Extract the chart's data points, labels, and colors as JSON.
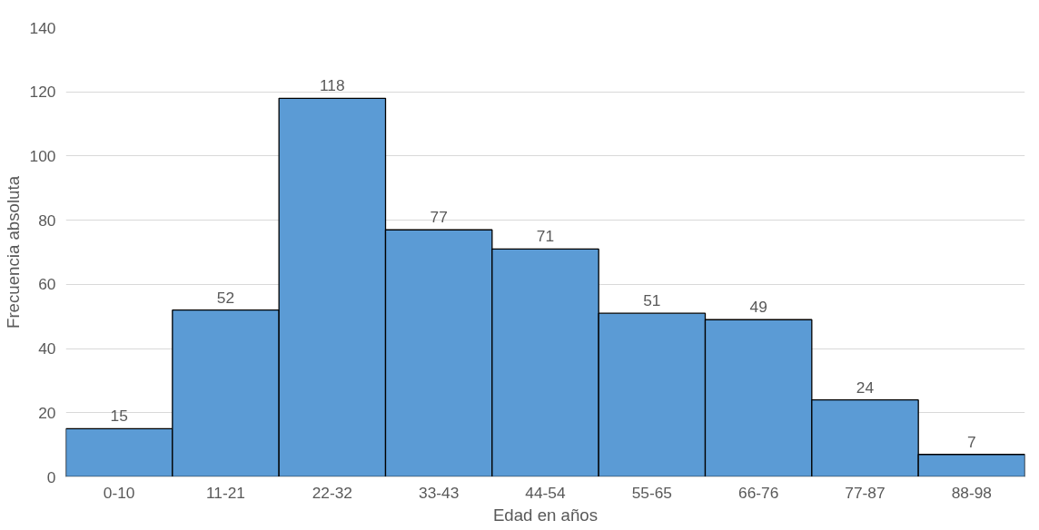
{
  "chart_data": {
    "type": "bar",
    "xlabel": "Edad en años",
    "ylabel": "Frecuencia absoluta",
    "categories": [
      "0-10",
      "11-21",
      "22-32",
      "33-43",
      "44-54",
      "55-65",
      "66-76",
      "77-87",
      "88-98"
    ],
    "values": [
      15,
      52,
      118,
      77,
      71,
      51,
      49,
      24,
      7
    ],
    "color": "#5b9bd5",
    "ylim": [
      0,
      140
    ],
    "yticks": [
      0,
      20,
      40,
      60,
      80,
      100,
      120,
      140
    ],
    "grid": "y",
    "data_labels": true
  }
}
